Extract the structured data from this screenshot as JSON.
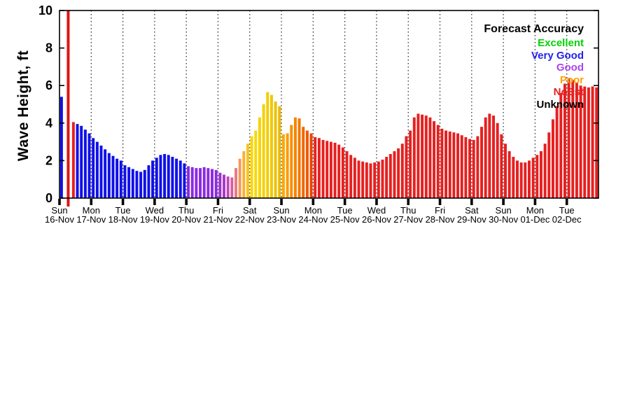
{
  "chart_data": {
    "type": "bar",
    "title": "",
    "ylabel": "Wave Height, ft",
    "ylim": [
      0,
      10
    ],
    "yticks": [
      0,
      2,
      4,
      6,
      8,
      10
    ],
    "grid": "vertical-dotted-per-day",
    "now_marker": {
      "day_index": 0,
      "hour": 2.2,
      "color": "#dd1515"
    },
    "legend": {
      "title": "Forecast Accuracy",
      "position": "top-right",
      "items": [
        {
          "label": "Excellent",
          "color": "#00d400"
        },
        {
          "label": "Very Good",
          "color": "#2222ee"
        },
        {
          "label": "Good",
          "color": "#aa44ee"
        },
        {
          "label": "Poor",
          "color": "#ffa000"
        },
        {
          "label": "NoEst",
          "color": "#e62020"
        },
        {
          "label": "Unknown",
          "color": "#000000"
        }
      ]
    },
    "days": [
      {
        "day": "Sun",
        "date": "16-Nov",
        "values": [
          5.4,
          null,
          null,
          4.05,
          3.95,
          3.85,
          3.65,
          3.45
        ],
        "colors": [
          "#1010e8",
          "#1010e8",
          "#1010e8",
          "#e62020",
          "#1010e8",
          "#1010e8",
          "#1010e8",
          "#1010e8"
        ]
      },
      {
        "day": "Mon",
        "date": "17-Nov",
        "values": [
          3.2,
          3.0,
          2.8,
          2.6,
          2.4,
          2.25,
          2.1,
          2.0
        ],
        "colors": "#1010e8"
      },
      {
        "day": "Tue",
        "date": "18-Nov",
        "values": [
          1.75,
          1.65,
          1.55,
          1.45,
          1.4,
          1.5,
          1.75,
          2.0
        ],
        "colors": "#1010e8"
      },
      {
        "day": "Wed",
        "date": "19-Nov",
        "values": [
          2.15,
          2.3,
          2.35,
          2.3,
          2.2,
          2.1,
          2.0,
          1.85
        ],
        "colors": "#1010e8"
      },
      {
        "day": "Thu",
        "date": "20-Nov",
        "values": [
          1.7,
          1.65,
          1.6,
          1.6,
          1.65,
          1.6,
          1.55,
          1.5
        ],
        "colors": "#8a2be2"
      },
      {
        "day": "Fri",
        "date": "21-Nov",
        "values": [
          1.35,
          1.25,
          1.15,
          1.1,
          1.6,
          2.1,
          2.5,
          2.9
        ],
        "colors": [
          "#9932cc",
          "#a838c8",
          "#c048b8",
          "#d85ca0",
          "#ec7a80",
          "#f89858",
          "#fcb030",
          "#fcc418"
        ]
      },
      {
        "day": "Sat",
        "date": "22-Nov",
        "values": [
          3.3,
          3.6,
          4.3,
          5.0,
          5.65,
          5.5,
          5.15,
          4.9
        ],
        "colors": [
          "#f8d800",
          "#f8d800",
          "#f6d400",
          "#f4d000",
          "#f2cc00",
          "#f0c800",
          "#eec000",
          "#ecb800"
        ]
      },
      {
        "day": "Sun",
        "date": "23-Nov",
        "values": [
          3.4,
          3.45,
          3.9,
          4.3,
          4.25,
          3.8,
          3.6,
          3.45
        ],
        "colors": [
          "#fca800",
          "#fa9c00",
          "#f89000",
          "#f68400",
          "#f47800",
          "#f26800",
          "#f05800",
          "#ee4400"
        ]
      },
      {
        "day": "Mon",
        "date": "24-Nov",
        "values": [
          3.25,
          3.2,
          3.1,
          3.05,
          3.0,
          2.95,
          2.85,
          2.7
        ],
        "colors": "#e62020"
      },
      {
        "day": "Tue",
        "date": "25-Nov",
        "values": [
          2.5,
          2.3,
          2.15,
          2.0,
          1.95,
          1.9,
          1.85,
          1.9
        ],
        "colors": "#e62020"
      },
      {
        "day": "Wed",
        "date": "26-Nov",
        "values": [
          1.95,
          2.05,
          2.2,
          2.35,
          2.5,
          2.65,
          2.9,
          3.3
        ],
        "colors": "#e62020"
      },
      {
        "day": "Thu",
        "date": "27-Nov",
        "values": [
          3.6,
          4.3,
          4.5,
          4.45,
          4.4,
          4.3,
          4.1,
          3.9
        ],
        "colors": "#e62020"
      },
      {
        "day": "Fri",
        "date": "28-Nov",
        "values": [
          3.7,
          3.6,
          3.55,
          3.5,
          3.45,
          3.35,
          3.25,
          3.15
        ],
        "colors": "#e62020"
      },
      {
        "day": "Sat",
        "date": "29-Nov",
        "values": [
          3.1,
          3.3,
          3.8,
          4.3,
          4.5,
          4.4,
          4.0,
          3.4
        ],
        "colors": "#e62020"
      },
      {
        "day": "Sun",
        "date": "30-Nov",
        "values": [
          2.9,
          2.5,
          2.2,
          2.0,
          1.9,
          1.9,
          2.0,
          2.15
        ],
        "colors": "#e62020"
      },
      {
        "day": "Mon",
        "date": "01-Dec",
        "values": [
          2.3,
          2.5,
          2.9,
          3.5,
          4.2,
          4.9,
          5.6,
          6.1
        ],
        "colors": "#e62020"
      },
      {
        "day": "Tue",
        "date": "02-Dec",
        "values": [
          6.4,
          6.3,
          6.15,
          6.0,
          5.95,
          5.9,
          5.95,
          5.9
        ],
        "colors": "#e62020"
      }
    ]
  }
}
